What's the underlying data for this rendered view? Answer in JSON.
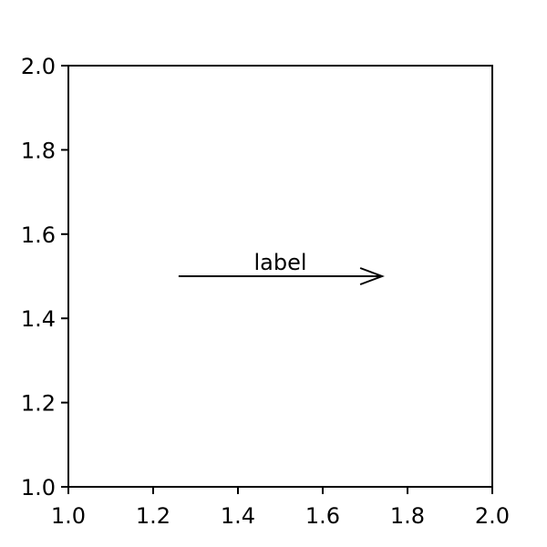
{
  "chart_data": {
    "type": "scatter",
    "title": "",
    "xlabel": "",
    "ylabel": "",
    "xlim": [
      1.0,
      2.0
    ],
    "ylim": [
      1.0,
      2.0
    ],
    "grid": false,
    "series": [],
    "x_ticks": [
      {
        "value": 1.0,
        "label": "1.0"
      },
      {
        "value": 1.2,
        "label": "1.2"
      },
      {
        "value": 1.4,
        "label": "1.4"
      },
      {
        "value": 1.6,
        "label": "1.6"
      },
      {
        "value": 1.8,
        "label": "1.8"
      },
      {
        "value": 2.0,
        "label": "2.0"
      }
    ],
    "y_ticks": [
      {
        "value": 1.0,
        "label": "1.0"
      },
      {
        "value": 1.2,
        "label": "1.2"
      },
      {
        "value": 1.4,
        "label": "1.4"
      },
      {
        "value": 1.6,
        "label": "1.6"
      },
      {
        "value": 1.8,
        "label": "1.8"
      },
      {
        "value": 2.0,
        "label": "2.0"
      }
    ],
    "annotation": {
      "text": "label",
      "arrow_start": [
        1.26,
        1.5
      ],
      "arrow_end": [
        1.74,
        1.5
      ],
      "color": "#000000"
    }
  }
}
